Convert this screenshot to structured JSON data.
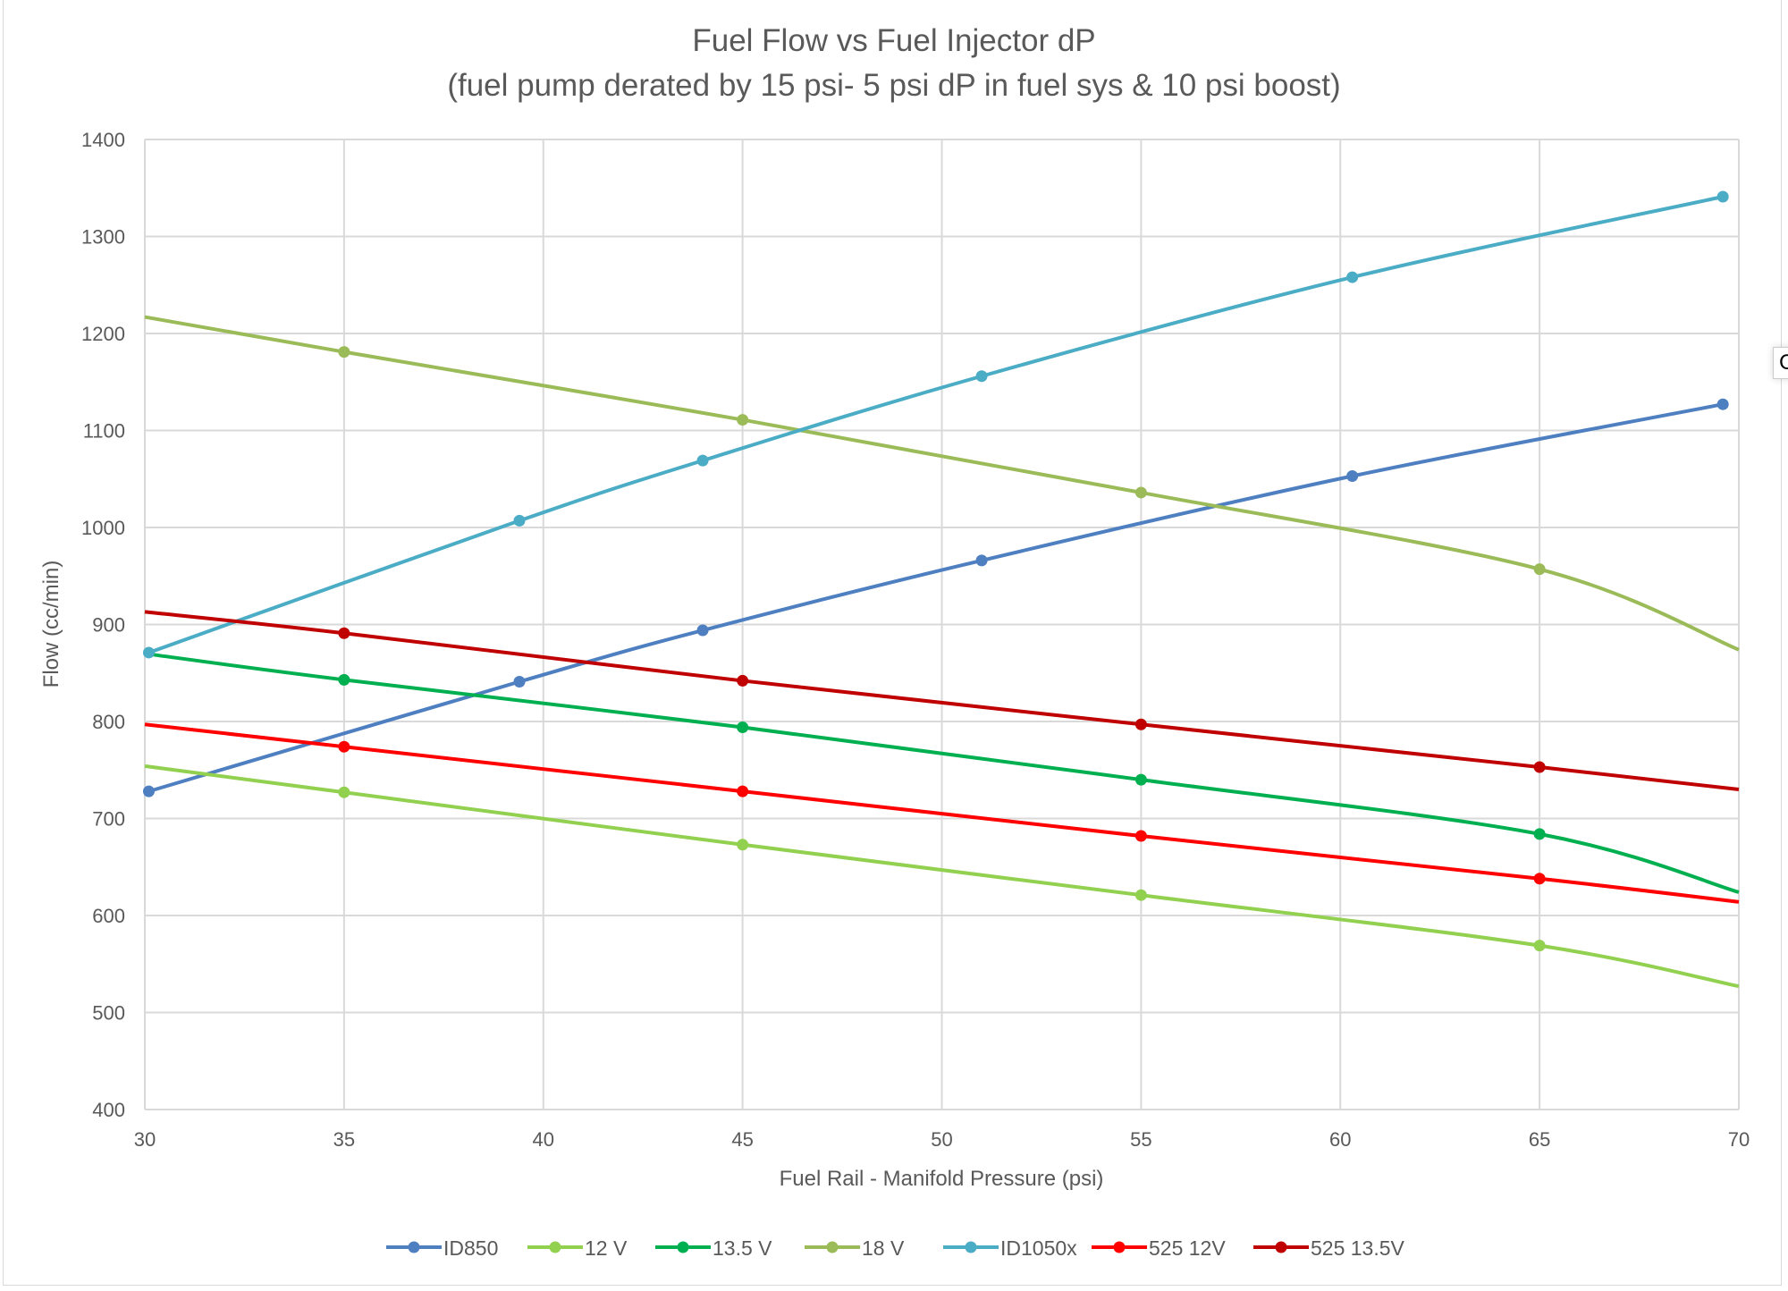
{
  "chart_data": {
    "type": "line",
    "title": "Fuel Flow vs Fuel Injector dP",
    "subtitle": "(fuel pump derated by 15 psi- 5 psi dP in fuel sys & 10 psi boost)",
    "xlabel": "Fuel Rail - Manifold Pressure (psi)",
    "ylabel": "Flow (cc/min)",
    "xlim": [
      30,
      70
    ],
    "ylim": [
      400,
      1400
    ],
    "xticks": [
      30,
      35,
      40,
      45,
      50,
      55,
      60,
      65,
      70
    ],
    "yticks": [
      400,
      500,
      600,
      700,
      800,
      900,
      1000,
      1100,
      1200,
      1300,
      1400
    ],
    "grid": true,
    "legend": "bottom",
    "series": [
      {
        "name": "ID850",
        "color": "#4e7fc0",
        "x": [
          30.1,
          39.4,
          44.0,
          51.0,
          60.3,
          69.6
        ],
        "y": [
          728,
          841,
          894,
          966,
          1053,
          1127
        ],
        "line_start": null,
        "line_end": null
      },
      {
        "name": "12 V",
        "color": "#92d050",
        "x": [
          35,
          45,
          55,
          65
        ],
        "y": [
          727,
          673,
          621,
          569
        ],
        "line_start": [
          30,
          754
        ],
        "line_end": [
          70,
          527
        ]
      },
      {
        "name": "13.5 V",
        "color": "#00b050",
        "x": [
          35,
          45,
          55,
          65
        ],
        "y": [
          843,
          794,
          740,
          684
        ],
        "line_start": [
          30,
          870
        ],
        "line_end": [
          70,
          624
        ]
      },
      {
        "name": "18 V",
        "color": "#9bbb59",
        "x": [
          35,
          45,
          55,
          65
        ],
        "y": [
          1181,
          1111,
          1036,
          957
        ],
        "line_start": [
          30,
          1217
        ],
        "line_end": [
          70,
          874
        ]
      },
      {
        "name": "ID1050x",
        "color": "#4bacc6",
        "x": [
          30.1,
          39.4,
          44.0,
          51.0,
          60.3,
          69.6
        ],
        "y": [
          871,
          1007,
          1069,
          1156,
          1258,
          1341
        ],
        "line_start": null,
        "line_end": null
      },
      {
        "name": "525 12V",
        "color": "#ff0000",
        "x": [
          35,
          45,
          55,
          65
        ],
        "y": [
          774,
          728,
          682,
          638
        ],
        "line_start": [
          30,
          797
        ],
        "line_end": [
          70,
          614
        ]
      },
      {
        "name": "525 13.5V",
        "color": "#c00000",
        "x": [
          35,
          45,
          55,
          65
        ],
        "y": [
          891,
          842,
          797,
          753
        ],
        "line_start": [
          30,
          913
        ],
        "line_end": [
          70,
          730
        ]
      }
    ]
  },
  "tooltip_fragment": "C"
}
